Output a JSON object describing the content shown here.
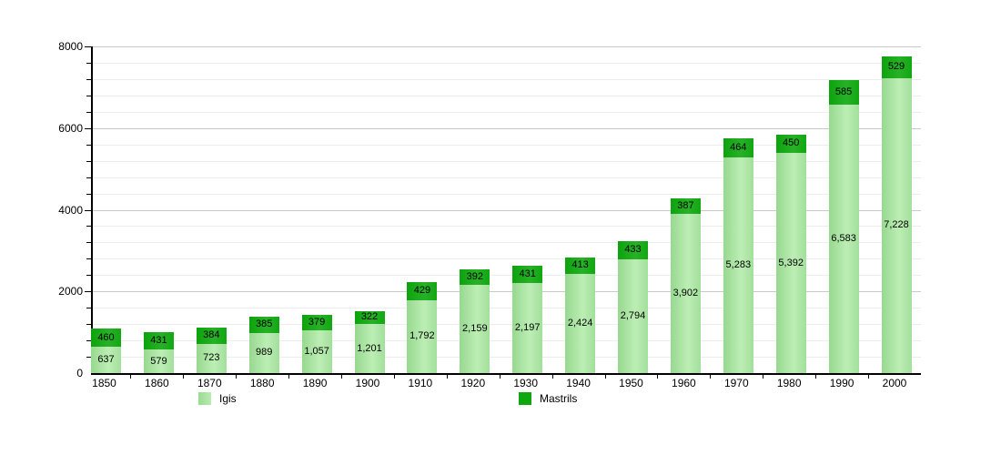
{
  "chart_data": {
    "type": "bar",
    "stacked": true,
    "title": "",
    "xlabel": "",
    "ylabel": "",
    "categories": [
      "1850",
      "1860",
      "1870",
      "1880",
      "1890",
      "1900",
      "1910",
      "1920",
      "1930",
      "1940",
      "1950",
      "1960",
      "1970",
      "1980",
      "1990",
      "2000"
    ],
    "series": [
      {
        "name": "Igis",
        "color": "#a6e1a0",
        "values": [
          637,
          579,
          723,
          989,
          1057,
          1201,
          1792,
          2159,
          2197,
          2424,
          2794,
          3902,
          5283,
          5392,
          6583,
          7228
        ]
      },
      {
        "name": "Mastrils",
        "color": "#14a814",
        "values": [
          460,
          431,
          384,
          385,
          379,
          322,
          429,
          392,
          431,
          413,
          433,
          387,
          464,
          450,
          585,
          529
        ]
      }
    ],
    "ylim": [
      0,
      8000
    ],
    "yticks": [
      0,
      2000,
      4000,
      6000,
      8000
    ],
    "grid_minor_step": 400,
    "grid": "on",
    "legend_position": "bottom",
    "value_labels": "inside-segments",
    "number_format": "thousands-comma"
  }
}
